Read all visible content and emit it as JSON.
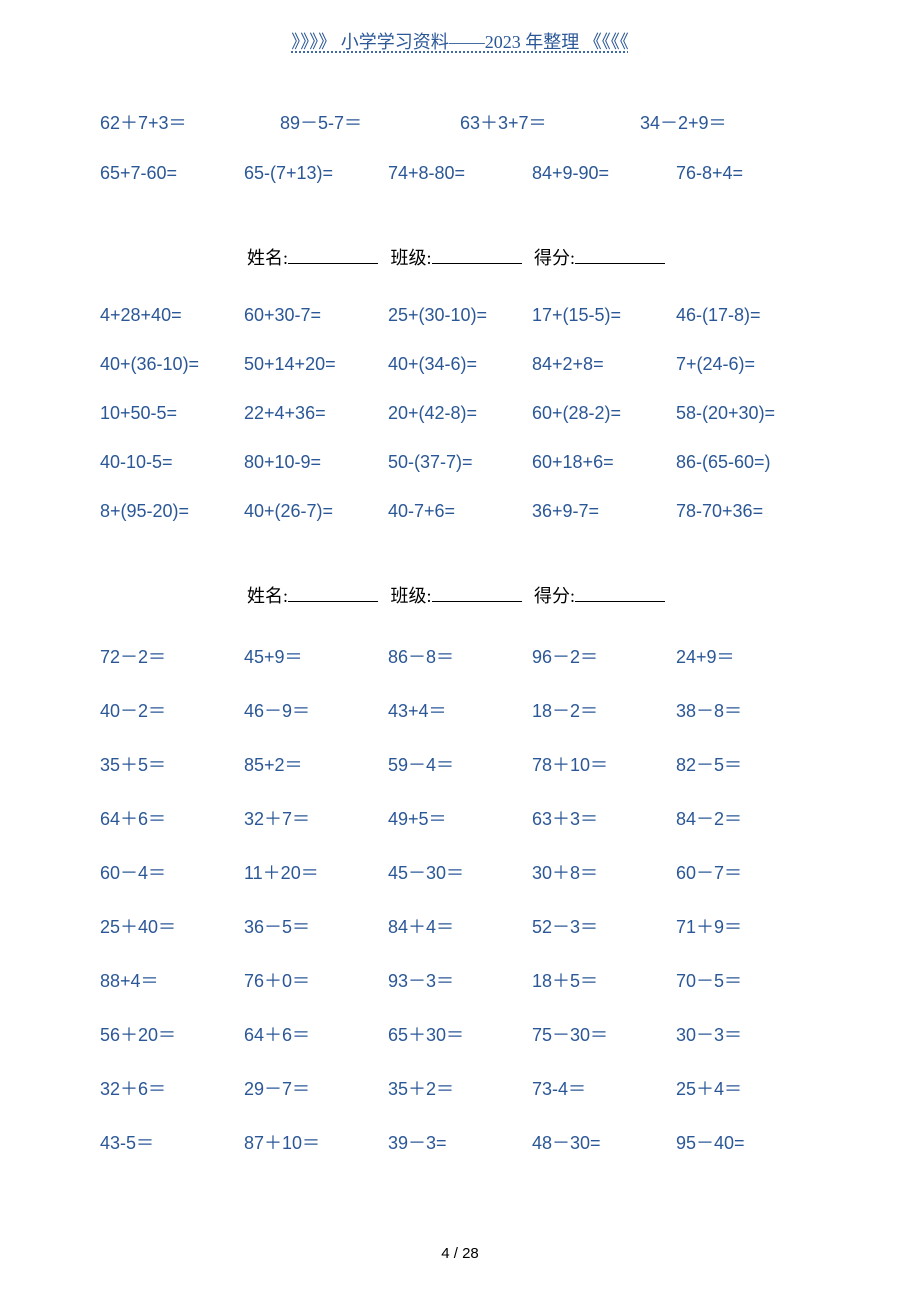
{
  "header_text": "》》》》 小学学习资料——2023 年整理 《《《《",
  "info_labels": {
    "name": "姓名:",
    "class": "班级:",
    "score": "得分:"
  },
  "section_top": {
    "rows": [
      [
        "62＋7+3＝",
        "89－5-7＝",
        "63＋3+7＝",
        "34－2+9＝"
      ],
      [
        "65+7-60=",
        "65-(7+13)=",
        "74+8-80=",
        "84+9-90=",
        "76-8+4="
      ]
    ]
  },
  "section2": {
    "rows": [
      [
        "4+28+40=",
        "60+30-7=",
        "25+(30-10)=",
        "17+(15-5)=",
        "46-(17-8)="
      ],
      [
        "40+(36-10)=",
        "50+14+20=",
        "40+(34-6)=",
        "84+2+8=",
        "7+(24-6)="
      ],
      [
        "10+50-5=",
        "22+4+36=",
        "20+(42-8)=",
        "60+(28-2)=",
        "58-(20+30)="
      ],
      [
        "40-10-5=",
        "80+10-9=",
        "50-(37-7)=",
        "60+18+6=",
        "86-(65-60=)"
      ],
      [
        "8+(95-20)=",
        "40+(26-7)=",
        "40-7+6=",
        "36+9-7=",
        "78-70+36="
      ]
    ]
  },
  "section3": {
    "rows": [
      [
        "72－2＝",
        "45+9＝",
        "86－8＝",
        "96－2＝",
        "24+9＝"
      ],
      [
        "40－2＝",
        "46－9＝",
        "43+4＝",
        "18－2＝",
        "38－8＝"
      ],
      [
        "35＋5＝",
        "85+2＝",
        "59－4＝",
        "78＋10＝",
        "82－5＝"
      ],
      [
        "64＋6＝",
        "32＋7＝",
        "49+5＝",
        "63＋3＝",
        "84－2＝"
      ],
      [
        "60－4＝",
        "11＋20＝",
        "45－30＝",
        "30＋8＝",
        "60－7＝"
      ],
      [
        "25＋40＝",
        "36－5＝",
        "84＋4＝",
        "52－3＝",
        "71＋9＝"
      ],
      [
        "88+4＝",
        "76＋0＝",
        "93－3＝",
        "18＋5＝",
        "70－5＝"
      ],
      [
        "56＋20＝",
        "64＋6＝",
        "65＋30＝",
        "75－30＝",
        "30－3＝"
      ],
      [
        "32＋6＝",
        "29－7＝",
        "35＋2＝",
        "73-4＝",
        "25＋4＝"
      ],
      [
        "43-5＝",
        "87＋10＝",
        "39－3=",
        "48－30=",
        "95－40="
      ]
    ]
  },
  "footer_text": "4 / 28",
  "colors": {
    "text": "#2b5797",
    "black": "#000000",
    "background": "#ffffff"
  }
}
